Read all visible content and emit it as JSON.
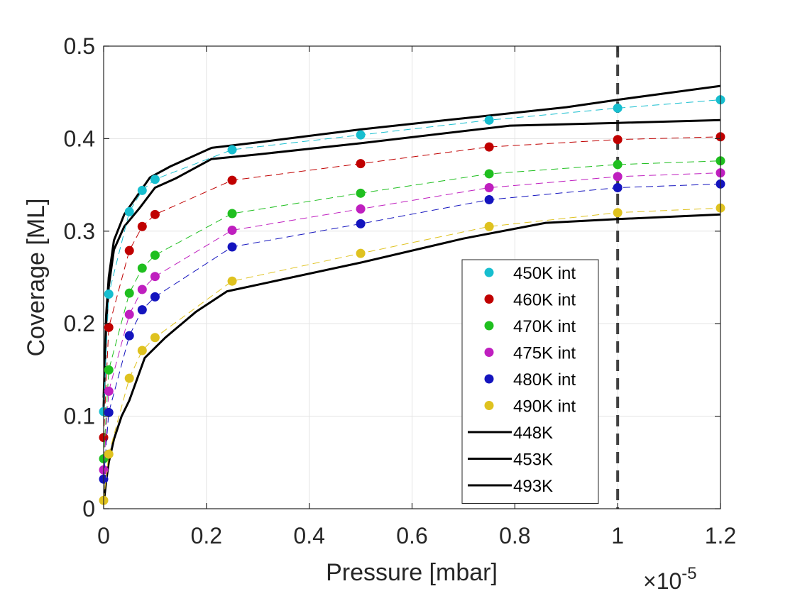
{
  "chart_data": {
    "type": "scatter",
    "title": "",
    "xlabel": "Pressure [mbar]",
    "ylabel": "Coverage [ML]",
    "x_exponent_label": "10",
    "x_exponent_power": "-5",
    "x_exponent_prefix": "×",
    "xlim": [
      0,
      1.2
    ],
    "ylim": [
      0,
      0.5
    ],
    "xticks": [
      0,
      0.2,
      0.4,
      0.6,
      0.8,
      1,
      1.2
    ],
    "xtick_labels": [
      "0",
      "0.2",
      "0.4",
      "0.6",
      "0.8",
      "1",
      "1.2"
    ],
    "yticks": [
      0,
      0.1,
      0.2,
      0.3,
      0.4,
      0.5
    ],
    "ytick_labels": [
      "0",
      "0.1",
      "0.2",
      "0.3",
      "0.4",
      "0.5"
    ],
    "grid": true,
    "legend_position": "lower-right",
    "vertical_reference_line": {
      "x": 1,
      "style": "dashed",
      "color": "#404040"
    },
    "scatter_series": [
      {
        "name": "450K int",
        "color": "#17BECF",
        "x": [
          0,
          0.01,
          0.05,
          0.075,
          0.1,
          0.25,
          0.5,
          0.75,
          1,
          1.2
        ],
        "y": [
          0.105,
          0.232,
          0.321,
          0.344,
          0.356,
          0.388,
          0.404,
          0.42,
          0.433,
          0.442
        ]
      },
      {
        "name": "460K int",
        "color": "#C00000",
        "x": [
          0,
          0.01,
          0.05,
          0.075,
          0.1,
          0.25,
          0.5,
          0.75,
          1,
          1.2
        ],
        "y": [
          0.077,
          0.196,
          0.279,
          0.305,
          0.318,
          0.355,
          0.373,
          0.391,
          0.399,
          0.402
        ]
      },
      {
        "name": "470K int",
        "color": "#1FBF1F",
        "x": [
          0,
          0.01,
          0.05,
          0.075,
          0.1,
          0.25,
          0.5,
          0.75,
          1,
          1.2
        ],
        "y": [
          0.054,
          0.15,
          0.233,
          0.26,
          0.274,
          0.319,
          0.341,
          0.362,
          0.372,
          0.376
        ]
      },
      {
        "name": "475K int",
        "color": "#BF1FBF",
        "x": [
          0,
          0.01,
          0.05,
          0.075,
          0.1,
          0.25,
          0.5,
          0.75,
          1,
          1.2
        ],
        "y": [
          0.042,
          0.127,
          0.21,
          0.237,
          0.251,
          0.301,
          0.324,
          0.347,
          0.359,
          0.363
        ]
      },
      {
        "name": "480K int",
        "color": "#1414BE",
        "x": [
          0,
          0.01,
          0.05,
          0.075,
          0.1,
          0.25,
          0.5,
          0.75,
          1,
          1.2
        ],
        "y": [
          0.032,
          0.104,
          0.187,
          0.215,
          0.229,
          0.283,
          0.308,
          0.334,
          0.347,
          0.351
        ]
      },
      {
        "name": "490K int",
        "color": "#DFC21F",
        "x": [
          0,
          0.01,
          0.05,
          0.075,
          0.1,
          0.25,
          0.5,
          0.75,
          1,
          1.2
        ],
        "y": [
          0.009,
          0.059,
          0.141,
          0.171,
          0.185,
          0.246,
          0.276,
          0.305,
          0.32,
          0.325
        ]
      }
    ],
    "line_series": [
      {
        "name": "448K",
        "color": "#000000",
        "x": [
          0,
          0.005,
          0.01,
          0.02,
          0.04,
          0.06,
          0.09,
          0.13,
          0.21,
          0.3,
          0.5,
          0.7,
          0.9,
          1.0,
          1.2
        ],
        "y": [
          0.12,
          0.21,
          0.25,
          0.29,
          0.318,
          0.334,
          0.358,
          0.37,
          0.39,
          0.396,
          0.41,
          0.422,
          0.434,
          0.442,
          0.457
        ]
      },
      {
        "name": "453K",
        "color": "#000000",
        "x": [
          0,
          0.005,
          0.01,
          0.02,
          0.04,
          0.07,
          0.1,
          0.14,
          0.21,
          0.3,
          0.5,
          0.79,
          1.0,
          1.2
        ],
        "y": [
          0.11,
          0.2,
          0.24,
          0.28,
          0.305,
          0.325,
          0.347,
          0.357,
          0.378,
          0.383,
          0.395,
          0.414,
          0.417,
          0.42
        ]
      },
      {
        "name": "493K",
        "color": "#000000",
        "x": [
          0,
          0.005,
          0.01,
          0.02,
          0.035,
          0.05,
          0.08,
          0.12,
          0.18,
          0.24,
          0.5,
          0.7,
          0.86,
          1.0,
          1.2
        ],
        "y": [
          0.005,
          0.03,
          0.05,
          0.075,
          0.1,
          0.117,
          0.163,
          0.185,
          0.213,
          0.235,
          0.266,
          0.292,
          0.309,
          0.313,
          0.318
        ]
      }
    ]
  }
}
